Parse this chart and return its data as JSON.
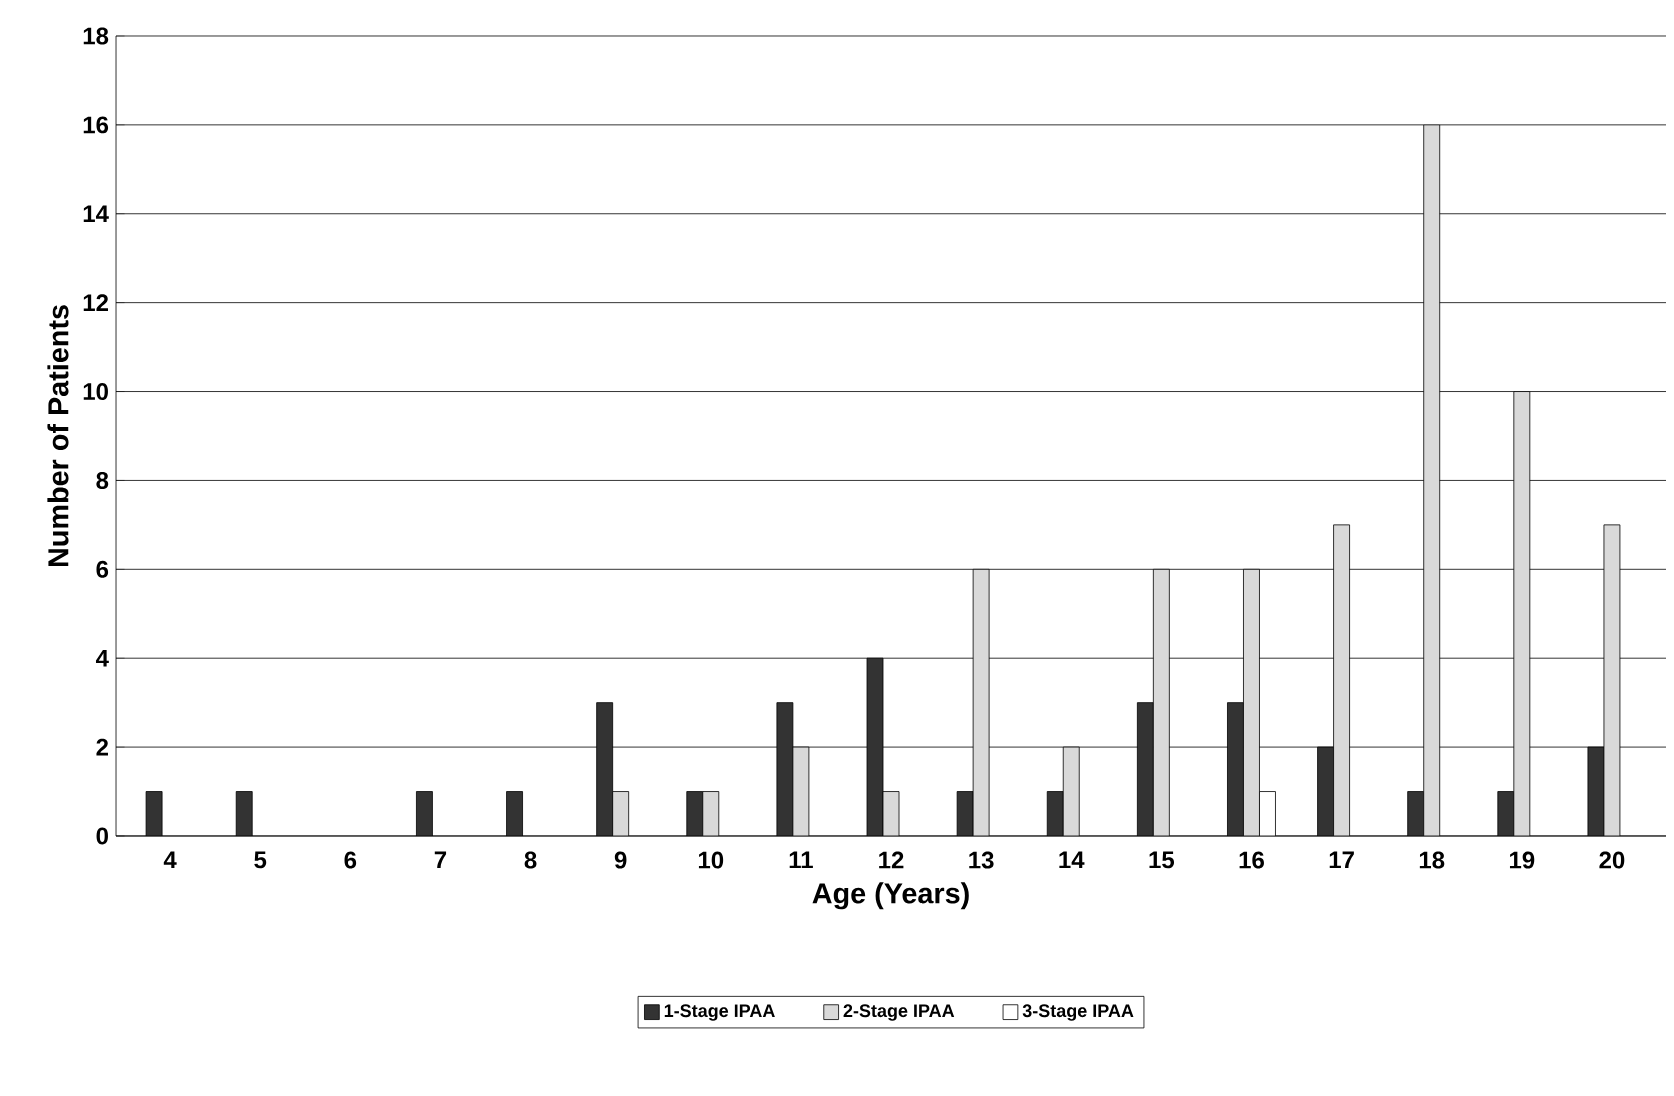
{
  "chart_data": {
    "type": "bar",
    "xlabel": "Age (Years)",
    "ylabel": "Number of Patients",
    "categories": [
      "4",
      "5",
      "6",
      "7",
      "8",
      "9",
      "10",
      "11",
      "12",
      "13",
      "14",
      "15",
      "16",
      "17",
      "18",
      "19",
      "20"
    ],
    "series": [
      {
        "name": "1-Stage IPAA",
        "color": "#333333",
        "values": [
          1,
          1,
          0,
          1,
          1,
          3,
          1,
          3,
          4,
          1,
          1,
          3,
          3,
          2,
          1,
          1,
          2
        ]
      },
      {
        "name": "2-Stage IPAA",
        "color": "#d9d9d9",
        "values": [
          0,
          0,
          0,
          0,
          0,
          1,
          1,
          2,
          1,
          6,
          2,
          6,
          6,
          7,
          16,
          10,
          7
        ]
      },
      {
        "name": "3-Stage IPAA",
        "color": "#ffffff",
        "values": [
          0,
          0,
          0,
          0,
          0,
          0,
          0,
          0,
          0,
          0,
          0,
          0,
          1,
          0,
          0,
          0,
          0
        ]
      }
    ],
    "ylim": [
      0,
      18
    ],
    "yticks": [
      0,
      2,
      4,
      6,
      8,
      10,
      12,
      14,
      16,
      18
    ],
    "grid": "y",
    "legend": "bottom"
  }
}
